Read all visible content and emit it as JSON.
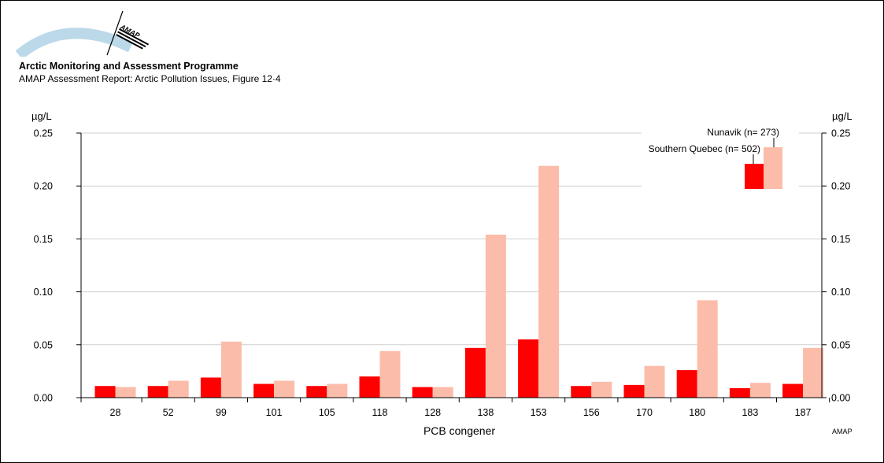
{
  "header": {
    "org_title": "Arctic Monitoring and Assessment Programme",
    "report_title": "AMAP Assessment Report: Arctic Pollution Issues, Figure 12·4",
    "logo_text": "AMAP",
    "credit": "AMAP"
  },
  "colors": {
    "southern_quebec": "#ff0000",
    "nunavik": "#fcbcaa",
    "grid": "#cfcfcf"
  },
  "chart_data": {
    "type": "bar",
    "xlabel": "PCB congener",
    "ylabel_left": "µg/L",
    "ylabel_right": "µg/L",
    "ylim": [
      0,
      0.25
    ],
    "yticks": [
      "0.00",
      "0.05",
      "0.10",
      "0.15",
      "0.20",
      "0.25"
    ],
    "grid": true,
    "legend_position": "top-right",
    "categories": [
      "28",
      "52",
      "99",
      "101",
      "105",
      "118",
      "128",
      "138",
      "153",
      "156",
      "170",
      "180",
      "183",
      "187"
    ],
    "series": [
      {
        "name": "Southern Quebec (n= 502)",
        "values": [
          0.011,
          0.011,
          0.019,
          0.013,
          0.011,
          0.02,
          0.01,
          0.047,
          0.055,
          0.011,
          0.012,
          0.026,
          0.009,
          0.013
        ]
      },
      {
        "name": "Nunavik (n= 273)",
        "values": [
          0.01,
          0.016,
          0.053,
          0.016,
          0.013,
          0.044,
          0.01,
          0.154,
          0.219,
          0.015,
          0.03,
          0.092,
          0.014,
          0.047
        ]
      }
    ]
  }
}
